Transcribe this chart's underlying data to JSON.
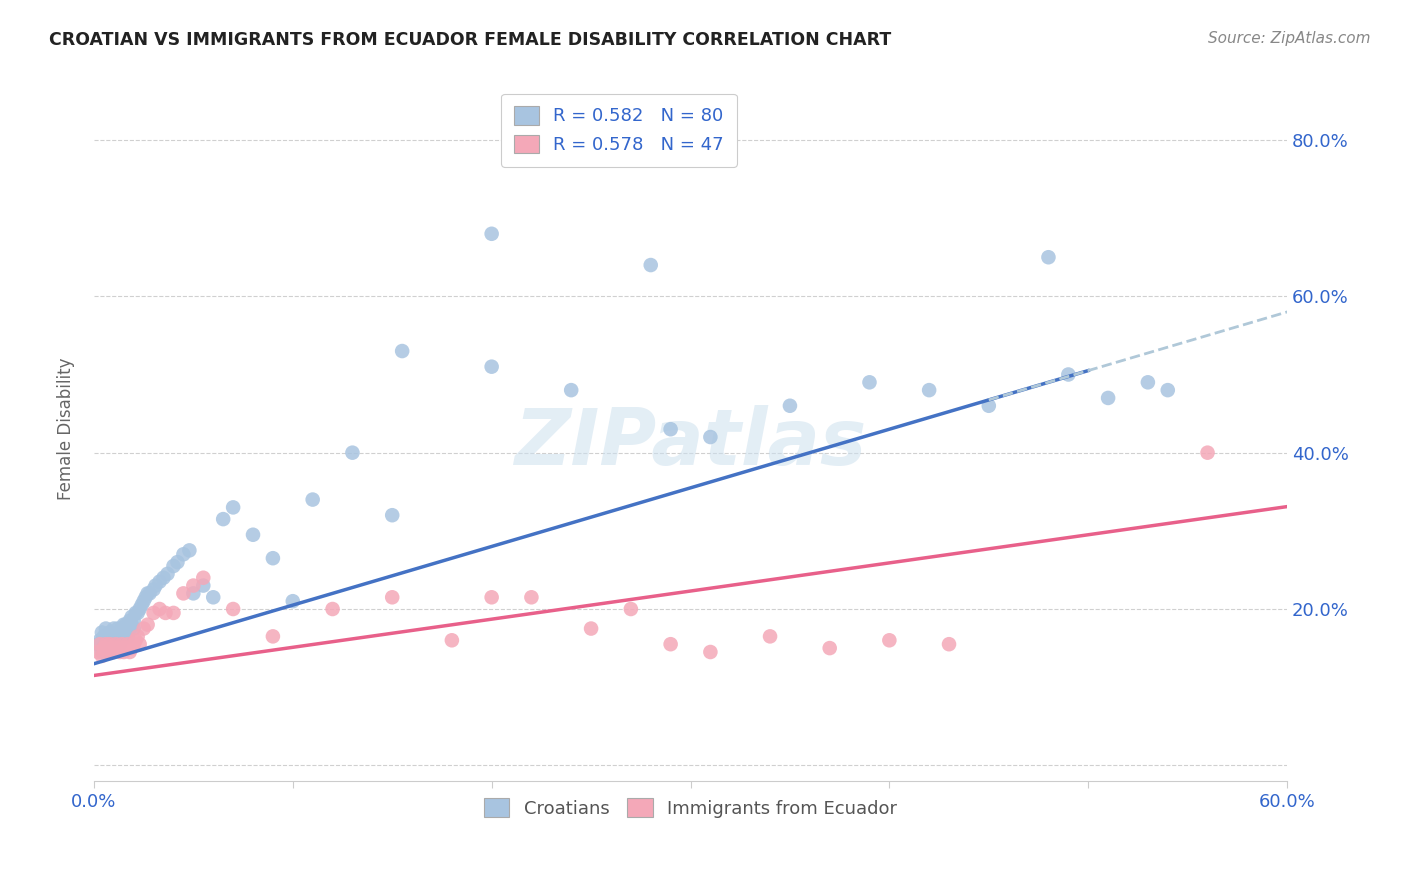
{
  "title": "CROATIAN VS IMMIGRANTS FROM ECUADOR FEMALE DISABILITY CORRELATION CHART",
  "source": "Source: ZipAtlas.com",
  "ylabel": "Female Disability",
  "xlim": [
    0.0,
    0.6
  ],
  "ylim": [
    -0.02,
    0.88
  ],
  "xticks": [
    0.0,
    0.1,
    0.2,
    0.3,
    0.4,
    0.5,
    0.6
  ],
  "xticklabels": [
    "0.0%",
    "",
    "",
    "",
    "",
    "",
    "60.0%"
  ],
  "yticks": [
    0.0,
    0.2,
    0.4,
    0.6,
    0.8
  ],
  "yticklabels": [
    "",
    "20.0%",
    "40.0%",
    "60.0%",
    "80.0%"
  ],
  "blue_color": "#a8c4e0",
  "pink_color": "#f4a8b8",
  "blue_line_color": "#4472c4",
  "pink_line_color": "#e8608a",
  "dashed_line_color": "#b0c8d8",
  "legend_r1": "R = 0.582",
  "legend_n1": "N = 80",
  "legend_r2": "R = 0.578",
  "legend_n2": "N = 47",
  "watermark": "ZIPatlas",
  "blue_slope": 0.75,
  "blue_intercept": 0.13,
  "pink_slope": 0.36,
  "pink_intercept": 0.115,
  "blue_x": [
    0.002,
    0.003,
    0.004,
    0.004,
    0.005,
    0.005,
    0.006,
    0.006,
    0.007,
    0.007,
    0.008,
    0.008,
    0.009,
    0.009,
    0.01,
    0.01,
    0.011,
    0.011,
    0.012,
    0.012,
    0.013,
    0.013,
    0.014,
    0.014,
    0.015,
    0.015,
    0.016,
    0.016,
    0.017,
    0.017,
    0.018,
    0.018,
    0.019,
    0.019,
    0.02,
    0.02,
    0.021,
    0.022,
    0.023,
    0.024,
    0.025,
    0.026,
    0.027,
    0.028,
    0.03,
    0.031,
    0.033,
    0.035,
    0.037,
    0.04,
    0.042,
    0.045,
    0.048,
    0.05,
    0.055,
    0.06,
    0.065,
    0.07,
    0.08,
    0.09,
    0.1,
    0.11,
    0.13,
    0.15,
    0.155,
    0.2,
    0.24,
    0.29,
    0.31,
    0.35,
    0.39,
    0.42,
    0.45,
    0.49,
    0.51,
    0.53,
    0.54,
    0.2,
    0.28,
    0.48
  ],
  "blue_y": [
    0.155,
    0.16,
    0.145,
    0.17,
    0.15,
    0.165,
    0.155,
    0.175,
    0.145,
    0.165,
    0.155,
    0.17,
    0.15,
    0.16,
    0.165,
    0.175,
    0.155,
    0.165,
    0.16,
    0.175,
    0.155,
    0.17,
    0.16,
    0.175,
    0.165,
    0.18,
    0.17,
    0.18,
    0.165,
    0.175,
    0.175,
    0.185,
    0.18,
    0.19,
    0.175,
    0.185,
    0.195,
    0.195,
    0.2,
    0.205,
    0.21,
    0.215,
    0.22,
    0.22,
    0.225,
    0.23,
    0.235,
    0.24,
    0.245,
    0.255,
    0.26,
    0.27,
    0.275,
    0.22,
    0.23,
    0.215,
    0.315,
    0.33,
    0.295,
    0.265,
    0.21,
    0.34,
    0.4,
    0.32,
    0.53,
    0.51,
    0.48,
    0.43,
    0.42,
    0.46,
    0.49,
    0.48,
    0.46,
    0.5,
    0.47,
    0.49,
    0.48,
    0.68,
    0.64,
    0.65
  ],
  "pink_x": [
    0.002,
    0.003,
    0.004,
    0.005,
    0.006,
    0.007,
    0.008,
    0.009,
    0.01,
    0.011,
    0.012,
    0.013,
    0.014,
    0.015,
    0.016,
    0.017,
    0.018,
    0.019,
    0.02,
    0.021,
    0.022,
    0.023,
    0.025,
    0.027,
    0.03,
    0.033,
    0.036,
    0.04,
    0.045,
    0.05,
    0.055,
    0.07,
    0.09,
    0.12,
    0.15,
    0.18,
    0.2,
    0.22,
    0.25,
    0.27,
    0.29,
    0.31,
    0.34,
    0.37,
    0.4,
    0.43,
    0.56
  ],
  "pink_y": [
    0.145,
    0.155,
    0.14,
    0.15,
    0.155,
    0.145,
    0.155,
    0.15,
    0.145,
    0.155,
    0.15,
    0.145,
    0.155,
    0.145,
    0.15,
    0.155,
    0.145,
    0.15,
    0.155,
    0.16,
    0.165,
    0.155,
    0.175,
    0.18,
    0.195,
    0.2,
    0.195,
    0.195,
    0.22,
    0.23,
    0.24,
    0.2,
    0.165,
    0.2,
    0.215,
    0.16,
    0.215,
    0.215,
    0.175,
    0.2,
    0.155,
    0.145,
    0.165,
    0.15,
    0.16,
    0.155,
    0.4
  ]
}
